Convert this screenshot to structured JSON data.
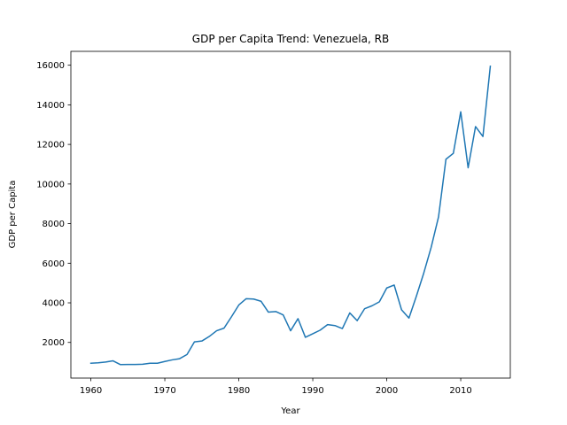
{
  "chart_data": {
    "type": "line",
    "title": "GDP per Capita Trend: Venezuela, RB",
    "xlabel": "Year",
    "ylabel": "GDP per Capita",
    "xlim": [
      1957.3,
      2016.7
    ],
    "ylim": [
      200,
      16700
    ],
    "x_ticks": [
      1960,
      1970,
      1980,
      1990,
      2000,
      2010
    ],
    "y_ticks": [
      2000,
      4000,
      6000,
      8000,
      10000,
      12000,
      14000,
      16000
    ],
    "grid": false,
    "legend": "none",
    "line_color": "#1f77b4",
    "series": [
      {
        "x": [
          1960,
          1961,
          1962,
          1963,
          1964,
          1965,
          1966,
          1967,
          1968,
          1969,
          1970,
          1971,
          1972,
          1973,
          1974,
          1975,
          1976,
          1977,
          1978,
          1979,
          1980,
          1981,
          1982,
          1983,
          1984,
          1985,
          1986,
          1987,
          1988,
          1989,
          1990,
          1991,
          1992,
          1993,
          1994,
          1995,
          1996,
          1997,
          1998,
          1999,
          2000,
          2001,
          2002,
          2003,
          2004,
          2005,
          2006,
          2007,
          2008,
          2009,
          2010,
          2011,
          2012,
          2013,
          2014
        ],
        "values": [
          950,
          970,
          1010,
          1070,
          880,
          890,
          890,
          900,
          950,
          950,
          1040,
          1120,
          1180,
          1390,
          2030,
          2070,
          2300,
          2590,
          2720,
          3290,
          3890,
          4210,
          4190,
          4080,
          3530,
          3560,
          3390,
          2590,
          3200,
          2260,
          2440,
          2620,
          2900,
          2850,
          2700,
          3490,
          3100,
          3700,
          3850,
          4050,
          4750,
          4900,
          3650,
          3230,
          4330,
          5500,
          6800,
          8340,
          11250,
          11550,
          13650,
          10820,
          12900,
          12400,
          15950
        ]
      }
    ]
  }
}
